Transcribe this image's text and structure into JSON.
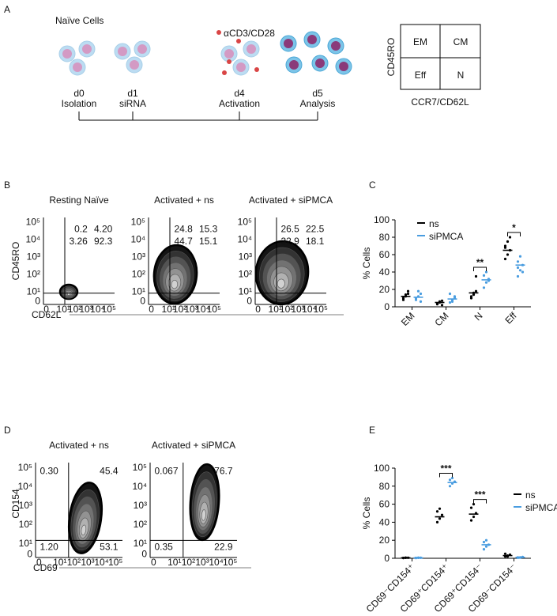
{
  "panel_labels": [
    "A",
    "B",
    "C",
    "D",
    "E"
  ],
  "timeline": {
    "naive_label": "Naïve Cells",
    "stimulus": "αCD3/CD28",
    "steps": [
      {
        "day": "d0",
        "label": "Isolation"
      },
      {
        "day": "d1",
        "label": "siRNA"
      },
      {
        "day": "d4",
        "label": "Activation"
      },
      {
        "day": "d5",
        "label": "Analysis"
      }
    ]
  },
  "quadrant_key": {
    "y_label": "CD45RO",
    "x_label": "CCR7/CD62L",
    "cells": [
      "EM",
      "CM",
      "Eff",
      "N"
    ]
  },
  "flow_b": {
    "y_label": "CD45RO",
    "x_label": "CD62L",
    "tick_labels": [
      "0",
      "10¹",
      "10²",
      "10³",
      "10⁴",
      "10⁵"
    ],
    "plots": [
      {
        "title": "Resting Naïve",
        "quadrants": [
          "0.2",
          "4.20",
          "3.26",
          "92.3"
        ]
      },
      {
        "title": "Activated + ns",
        "quadrants": [
          "24.8",
          "15.3",
          "44.7",
          "15.1"
        ]
      },
      {
        "title": "Activated + siPMCA",
        "quadrants": [
          "26.5",
          "22.5",
          "32.9",
          "18.1"
        ]
      }
    ]
  },
  "flow_d": {
    "y_label": "CD154",
    "x_label": "CD69",
    "tick_labels": [
      "0",
      "10¹",
      "10²",
      "10³",
      "10⁴",
      "10⁵"
    ],
    "plots": [
      {
        "title": "Activated + ns",
        "quadrants": [
          "0.30",
          "45.4",
          "1.20",
          "53.1"
        ]
      },
      {
        "title": "Activated + siPMCA",
        "quadrants": [
          "0.067",
          "76.7",
          "0.35",
          "22.9"
        ]
      }
    ]
  },
  "chart_data": [
    {
      "type": "dot",
      "y_label": "% Cells",
      "categories": [
        "EM",
        "CM",
        "N",
        "Eff"
      ],
      "series": [
        {
          "name": "ns",
          "color": "#000000",
          "values": [
            12,
            5,
            16,
            65
          ],
          "points": [
            [
              10,
              14,
              18,
              8,
              12,
              15
            ],
            [
              3,
              5,
              7,
              4,
              6,
              2
            ],
            [
              10,
              14,
              18,
              12,
              16,
              35
            ],
            [
              55,
              60,
              65,
              70,
              75,
              80,
              68
            ]
          ]
        },
        {
          "name": "siPMCA",
          "color": "#4a9de0",
          "values": [
            11,
            9,
            31,
            48
          ],
          "points": [
            [
              8,
              12,
              15,
              10,
              18,
              6
            ],
            [
              5,
              8,
              12,
              15,
              6,
              10
            ],
            [
              22,
              28,
              32,
              36,
              40,
              30
            ],
            [
              35,
              42,
              48,
              52,
              58,
              40,
              45
            ]
          ]
        }
      ],
      "significance": [
        null,
        null,
        "**",
        "*"
      ],
      "ylim": [
        0,
        100
      ],
      "yticks": [
        0,
        20,
        40,
        60,
        80,
        100
      ]
    },
    {
      "type": "dot",
      "y_label": "% Cells",
      "categories": [
        "CD69⁻CD154⁺",
        "CD69⁺CD154⁺",
        "CD69⁺CD154⁻",
        "CD69⁻CD154⁻"
      ],
      "series": [
        {
          "name": "ns",
          "color": "#000000",
          "values": [
            0.5,
            46,
            49,
            3
          ],
          "points": [
            [
              0.3,
              0.5,
              0.6,
              0.4,
              0.7
            ],
            [
              40,
              44,
              48,
              52,
              55
            ],
            [
              42,
              46,
              50,
              56,
              60
            ],
            [
              2,
              3,
              4,
              5,
              2
            ]
          ]
        },
        {
          "name": "siPMCA",
          "color": "#4a9de0",
          "values": [
            0.5,
            84,
            15,
            1
          ],
          "points": [
            [
              0.3,
              0.5,
              0.6,
              0.4,
              0.7
            ],
            [
              80,
              83,
              85,
              87,
              89
            ],
            [
              10,
              13,
              15,
              18,
              20
            ],
            [
              0.5,
              1,
              1.5,
              1,
              0.8
            ]
          ]
        }
      ],
      "significance": [
        null,
        "***",
        "***",
        null
      ],
      "ylim": [
        0,
        100
      ],
      "yticks": [
        0,
        20,
        40,
        60,
        80,
        100
      ]
    }
  ]
}
